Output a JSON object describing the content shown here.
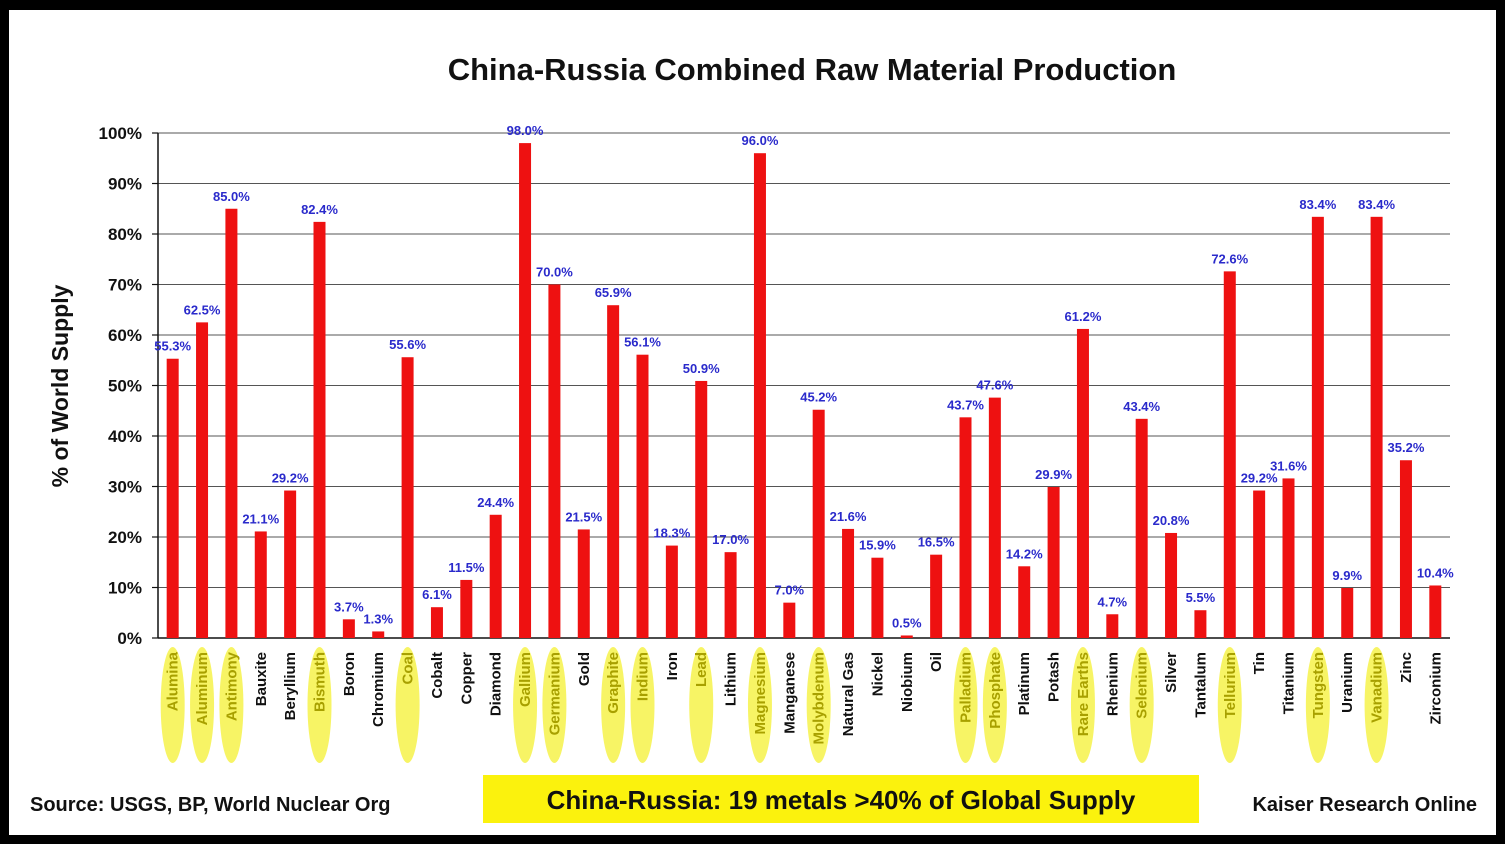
{
  "chart_data": {
    "type": "bar",
    "title": "China-Russia Combined Raw Material Production",
    "ylabel": "% of World Supply",
    "xlabel": "",
    "ylim": [
      0,
      100
    ],
    "yticks": [
      "0%",
      "10%",
      "20%",
      "30%",
      "40%",
      "50%",
      "60%",
      "70%",
      "80%",
      "90%",
      "100%"
    ],
    "grid": true,
    "categories": [
      "Alumina",
      "Aluminum",
      "Antimony",
      "Bauxite",
      "Beryllium",
      "Bismuth",
      "Boron",
      "Chromium",
      "Coal",
      "Cobalt",
      "Copper",
      "Diamond",
      "Gallium",
      "Germanium",
      "Gold",
      "Graphite",
      "Indium",
      "Iron",
      "Lead",
      "Lithium",
      "Magnesium",
      "Manganese",
      "Molybdenum",
      "Natural Gas",
      "Nickel",
      "Niobium",
      "Oil",
      "Palladium",
      "Phosphate",
      "Platinum",
      "Potash",
      "Rare Earths",
      "Rhenium",
      "Selenium",
      "Silver",
      "Tantalum",
      "Tellurium",
      "Tin",
      "Titanium",
      "Tungsten",
      "Uranium",
      "Vanadium",
      "Zinc",
      "Zirconium"
    ],
    "values": [
      55.3,
      62.5,
      85.0,
      21.1,
      29.2,
      82.4,
      3.7,
      1.3,
      55.6,
      6.1,
      11.5,
      24.4,
      98.0,
      70.0,
      21.5,
      65.9,
      56.1,
      18.3,
      50.9,
      17.0,
      96.0,
      7.0,
      45.2,
      21.6,
      15.9,
      0.5,
      16.5,
      43.7,
      47.6,
      14.2,
      29.9,
      61.2,
      4.7,
      43.4,
      20.8,
      5.5,
      72.6,
      29.2,
      31.6,
      83.4,
      9.9,
      83.4,
      35.2,
      10.4
    ],
    "value_labels": [
      "55.3%",
      "62.5%",
      "85.0%",
      "21.1%",
      "29.2%",
      "82.4%",
      "3.7%",
      "1.3%",
      "55.6%",
      "6.1%",
      "11.5%",
      "24.4%",
      "98.0%",
      "70.0%",
      "21.5%",
      "65.9%",
      "56.1%",
      "18.3%",
      "50.9%",
      "17.0%",
      "96.0%",
      "7.0%",
      "45.2%",
      "21.6%",
      "15.9%",
      "0.5%",
      "16.5%",
      "43.7%",
      "47.6%",
      "14.2%",
      "29.9%",
      "61.2%",
      "4.7%",
      "43.4%",
      "20.8%",
      "5.5%",
      "72.6%",
      "29.2%",
      "31.6%",
      "83.4%",
      "9.9%",
      "83.4%",
      "35.2%",
      "10.4%"
    ],
    "highlighted": [
      "Alumina",
      "Aluminum",
      "Antimony",
      "Bismuth",
      "Coal",
      "Gallium",
      "Germanium",
      "Graphite",
      "Indium",
      "Lead",
      "Magnesium",
      "Molybdenum",
      "Palladium",
      "Phosphate",
      "Rare Earths",
      "Selenium",
      "Tellurium",
      "Tungsten",
      "Vanadium"
    ],
    "colors": {
      "bar": "#ee1111",
      "label": "#2a2acb",
      "highlight": "#f6f24a",
      "grid": "#555555"
    }
  },
  "footer": {
    "source": "Source: USGS, BP, World Nuclear Org",
    "callout": "China-Russia: 19 metals >40% of Global Supply",
    "credit": "Kaiser Research Online"
  }
}
